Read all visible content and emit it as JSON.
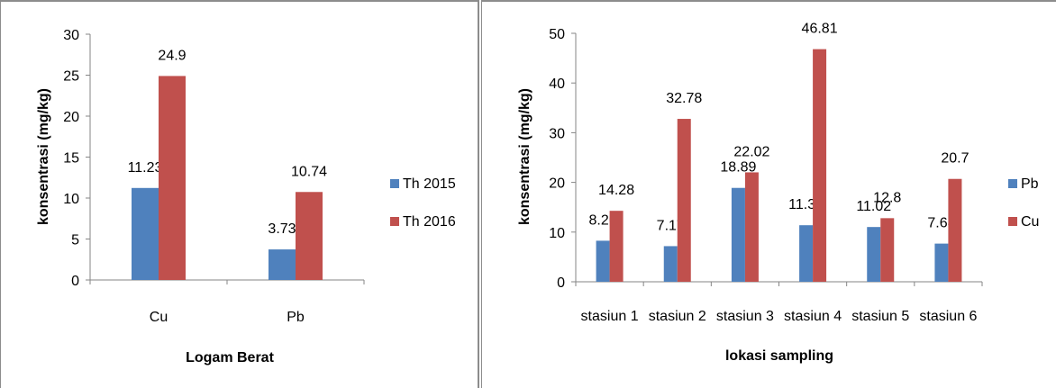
{
  "chart_data": [
    {
      "type": "bar",
      "xlabel": "Logam Berat",
      "ylabel": "konsentrasi (mg/kg)",
      "categories": [
        "Cu",
        "Pb"
      ],
      "series": [
        {
          "name": "Th 2015",
          "values": [
            11.23,
            3.73
          ],
          "color": "#4F81BD"
        },
        {
          "name": "Th 2016",
          "values": [
            24.9,
            10.74
          ],
          "color": "#C0504D"
        }
      ],
      "data_labels": [
        [
          "11.23",
          "3.73"
        ],
        [
          "24.9",
          "10.74"
        ]
      ],
      "ylim": [
        0,
        30
      ],
      "yticks": [
        0,
        5,
        10,
        15,
        20,
        25,
        30
      ],
      "grid": false,
      "legend": "right"
    },
    {
      "type": "bar",
      "xlabel": "lokasi sampling",
      "ylabel": "konsentrasi (mg/kg)",
      "categories": [
        "stasiun 1",
        "stasiun 2",
        "stasiun 3",
        "stasiun 4",
        "stasiun 5",
        "stasiun 6"
      ],
      "series": [
        {
          "name": "Pb",
          "values": [
            8.26,
            7.17,
            18.89,
            11.38,
            11.02,
            7.68
          ],
          "color": "#4F81BD"
        },
        {
          "name": "Cu",
          "values": [
            14.28,
            32.78,
            22.02,
            46.81,
            12.8,
            20.7
          ],
          "color": "#C0504D"
        }
      ],
      "data_labels": [
        [
          "8.26",
          "7.17",
          "18.89",
          "11.38",
          "11.02",
          "7.68"
        ],
        [
          "14.28",
          "32.78",
          "22.02",
          "46.81",
          "12.8",
          "20.7"
        ]
      ],
      "ylim": [
        0,
        50
      ],
      "yticks": [
        0,
        10,
        20,
        30,
        40,
        50
      ],
      "grid": false,
      "legend": "right"
    }
  ]
}
